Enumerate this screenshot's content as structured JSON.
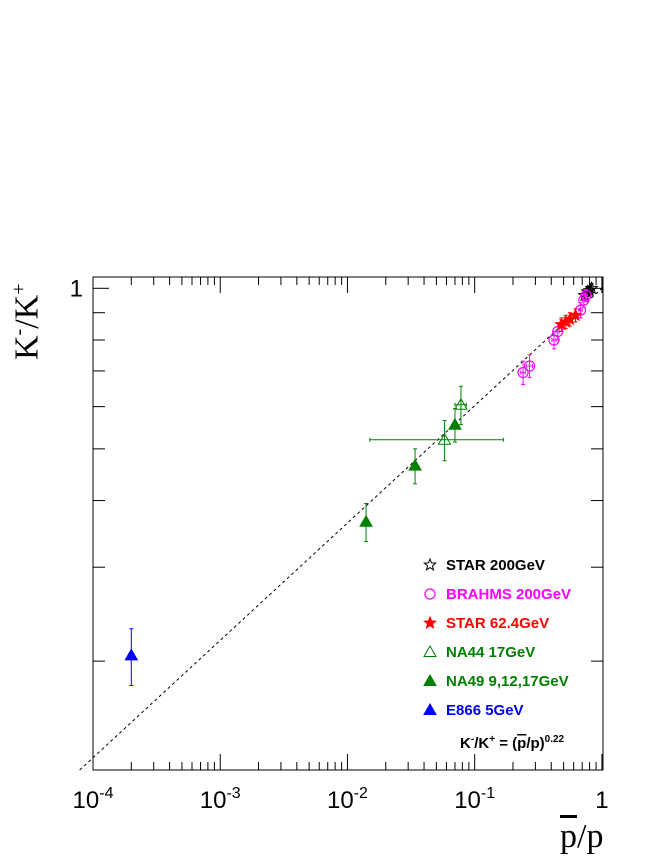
{
  "chart_data": {
    "type": "scatter",
    "title": "",
    "xlabel": {
      "main": "p",
      "over": "p",
      "sep": "/",
      "suffix": "p"
    },
    "ylabel": {
      "k1": "K",
      "s1": "-",
      "sep": "/",
      "k2": "K",
      "s2": "+"
    },
    "xscale": "log",
    "yscale": "log",
    "xlim": [
      0.0001,
      1.02
    ],
    "ylim": [
      0.125,
      1.05
    ],
    "x_tick_labels": [
      {
        "value": 0.0001,
        "base": "10",
        "exp": "-4"
      },
      {
        "value": 0.001,
        "base": "10",
        "exp": "-3"
      },
      {
        "value": 0.01,
        "base": "10",
        "exp": "-2"
      },
      {
        "value": 0.1,
        "base": "10",
        "exp": "-1"
      },
      {
        "value": 1,
        "base": "1",
        "exp": ""
      }
    ],
    "y_tick_labels": [
      {
        "value": 1,
        "label": "1"
      }
    ],
    "grid": false,
    "legend_position": "bottom-right",
    "fit_line": {
      "label": {
        "k1": "K",
        "s1": "-",
        "sep": "/",
        "k2": "K",
        "s2": "+",
        "eq": " = (",
        "over": "p",
        "mid": "/p)",
        "exp": "0.22"
      },
      "exponent": 0.22,
      "style": "dashed",
      "color": "#000000"
    },
    "series": [
      {
        "name": "STAR 200GeV",
        "marker": "star-open",
        "color": "#000000",
        "points": [
          {
            "x": 0.73,
            "y": 0.97,
            "yerr": 0.02,
            "xerr": 0.02
          },
          {
            "x": 0.77,
            "y": 0.985,
            "yerr": 0.02,
            "xerr": 0.02
          },
          {
            "x": 0.8,
            "y": 0.99,
            "yerr": 0.02,
            "xerr": 0.02
          },
          {
            "x": 0.83,
            "y": 1.0,
            "yerr": 0.02,
            "xerr": 0.02
          }
        ]
      },
      {
        "name": "BRAHMS 200GeV",
        "marker": "circle-open",
        "color": "#ff00ff",
        "points": [
          {
            "x": 0.24,
            "y": 0.695,
            "yerr": 0.035,
            "xerr": 0.01
          },
          {
            "x": 0.27,
            "y": 0.715,
            "yerr": 0.035,
            "xerr": 0.015
          },
          {
            "x": 0.42,
            "y": 0.8,
            "yerr": 0.03,
            "xerr": 0.015
          },
          {
            "x": 0.45,
            "y": 0.83,
            "yerr": 0.03,
            "xerr": 0.015
          },
          {
            "x": 0.68,
            "y": 0.91,
            "yerr": 0.03,
            "xerr": 0.02
          },
          {
            "x": 0.72,
            "y": 0.95,
            "yerr": 0.03,
            "xerr": 0.02
          },
          {
            "x": 0.75,
            "y": 0.97,
            "yerr": 0.025,
            "xerr": 0.02
          }
        ]
      },
      {
        "name": "STAR 62.4GeV",
        "marker": "star-filled",
        "color": "#ff0000",
        "points": [
          {
            "x": 0.48,
            "y": 0.855,
            "yerr": 0.025,
            "xerr": 0.02
          },
          {
            "x": 0.52,
            "y": 0.865,
            "yerr": 0.025,
            "xerr": 0.02
          },
          {
            "x": 0.56,
            "y": 0.875,
            "yerr": 0.025,
            "xerr": 0.02
          },
          {
            "x": 0.62,
            "y": 0.89,
            "yerr": 0.025,
            "xerr": 0.02
          }
        ]
      },
      {
        "name": "NA44 17GeV",
        "marker": "triangle-open",
        "color": "#008000",
        "points": [
          {
            "x": 0.058,
            "y": 0.52,
            "yerr": 0.045,
            "xerr_low": 0.043,
            "xerr_high": 0.11
          },
          {
            "x": 0.078,
            "y": 0.605,
            "yerr": 0.05,
            "xerr_low": 0.008,
            "xerr_high": 0.008
          }
        ]
      },
      {
        "name": "NA49 9,12,17GeV",
        "marker": "triangle-filled",
        "color": "#008000",
        "points": [
          {
            "x": 0.014,
            "y": 0.365,
            "yerr": 0.03,
            "xerr": 0
          },
          {
            "x": 0.034,
            "y": 0.465,
            "yerr": 0.035,
            "xerr": 0
          },
          {
            "x": 0.07,
            "y": 0.555,
            "yerr": 0.04,
            "xerr": 0
          }
        ]
      },
      {
        "name": "E866 5GeV",
        "marker": "triangle-filled",
        "color": "#0000ff",
        "points": [
          {
            "x": 0.0002,
            "y": 0.205,
            "yerr": 0.025,
            "xerr": 1e-05
          }
        ]
      }
    ]
  }
}
